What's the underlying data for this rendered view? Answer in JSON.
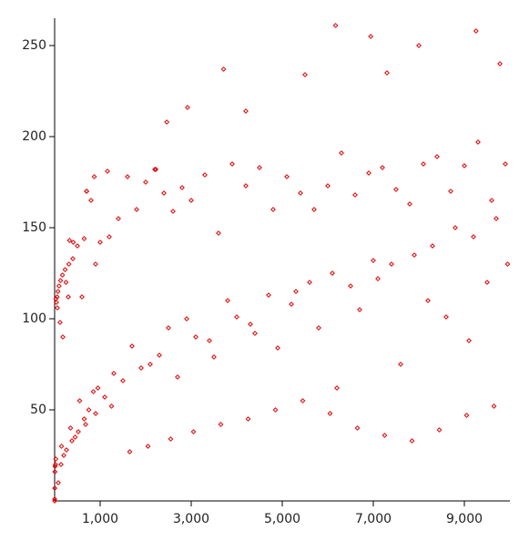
{
  "chart_data": {
    "type": "scatter",
    "color": "#e00000",
    "xlim": [
      0,
      10000
    ],
    "ylim": [
      0,
      265
    ],
    "xticks": [
      {
        "value": 1000,
        "label": "1,000"
      },
      {
        "value": 3000,
        "label": "3,000"
      },
      {
        "value": 5000,
        "label": "5,000"
      },
      {
        "value": 7000,
        "label": "7,000"
      },
      {
        "value": 9000,
        "label": "9,000"
      }
    ],
    "yticks": [
      50,
      100,
      150,
      200,
      250
    ],
    "x": [
      1,
      2,
      3,
      7,
      9,
      18,
      25,
      27,
      41,
      54,
      73,
      97,
      129,
      171,
      231,
      313,
      327,
      410,
      649,
      703,
      871,
      1161,
      2223,
      2463,
      2919,
      3711,
      6171,
      6943,
      9257,
      8000,
      9780,
      7300,
      5500,
      4200,
      60,
      120,
      180,
      250,
      300,
      400,
      500,
      600,
      700,
      800,
      900,
      1000,
      1200,
      1400,
      1600,
      1800,
      2000,
      2200,
      2400,
      2600,
      2800,
      3000,
      3300,
      3600,
      3900,
      4200,
      4500,
      4800,
      5100,
      5400,
      5700,
      6000,
      6300,
      6600,
      6900,
      7200,
      7500,
      7800,
      8100,
      8400,
      8700,
      9000,
      9300,
      9600,
      9900,
      150,
      350,
      550,
      750,
      950,
      1300,
      1700,
      2100,
      2500,
      2900,
      3400,
      3800,
      4300,
      4700,
      5200,
      5600,
      6100,
      6500,
      7000,
      7400,
      7900,
      8300,
      8800,
      9200,
      9700,
      200,
      450,
      650,
      850,
      1100,
      1500,
      1900,
      2300,
      2700,
      3100,
      3500,
      4000,
      4400,
      4900,
      5300,
      5800,
      6200,
      6700,
      7100,
      7600,
      8200,
      8600,
      9100,
      9500,
      9950,
      80,
      140,
      260,
      380,
      520,
      680,
      900,
      1250,
      1650,
      2050,
      2550,
      3050,
      3650,
      4250,
      4850,
      5450,
      6050,
      6650,
      7250,
      7850,
      8450,
      9050,
      9650
    ],
    "values": [
      0,
      1,
      7,
      16,
      19,
      20,
      23,
      111,
      109,
      112,
      115,
      118,
      121,
      124,
      127,
      130,
      143,
      142,
      144,
      170,
      178,
      181,
      182,
      208,
      216,
      237,
      261,
      255,
      258,
      250,
      240,
      235,
      234,
      214,
      106,
      98,
      90,
      120,
      112,
      133,
      140,
      112,
      170,
      165,
      130,
      142,
      145,
      155,
      178,
      160,
      175,
      182,
      169,
      159,
      172,
      165,
      179,
      147,
      185,
      173,
      183,
      160,
      178,
      169,
      160,
      173,
      191,
      168,
      180,
      183,
      171,
      163,
      185,
      189,
      170,
      184,
      197,
      165,
      185,
      30,
      40,
      55,
      50,
      62,
      70,
      85,
      75,
      95,
      100,
      88,
      110,
      97,
      113,
      108,
      120,
      125,
      118,
      132,
      130,
      135,
      140,
      150,
      145,
      155,
      25,
      35,
      45,
      60,
      57,
      66,
      73,
      80,
      68,
      90,
      79,
      101,
      92,
      84,
      115,
      95,
      62,
      105,
      122,
      75,
      110,
      101,
      88,
      120,
      130,
      10,
      20,
      28,
      33,
      38,
      42,
      48,
      52,
      27,
      30,
      34,
      38,
      42,
      45,
      50,
      55,
      48,
      40,
      36,
      33,
      39,
      47,
      52
    ]
  }
}
